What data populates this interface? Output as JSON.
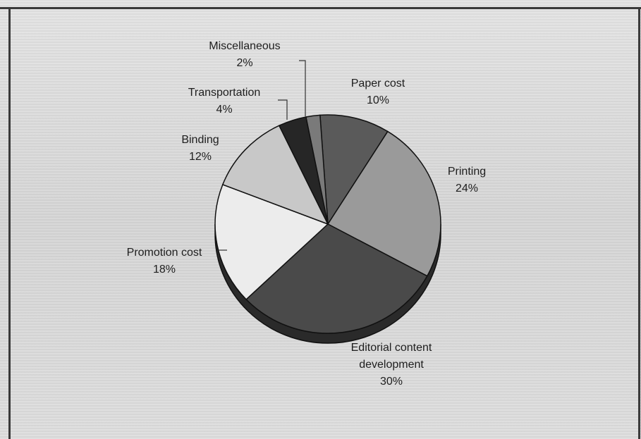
{
  "chart_data": {
    "type": "pie",
    "title": "",
    "slices": [
      {
        "label_lines": [
          "Paper cost"
        ],
        "pct_text": "10%",
        "value": 10,
        "color": "#5a5a5a"
      },
      {
        "label_lines": [
          "Printing"
        ],
        "pct_text": "24%",
        "value": 24,
        "color": "#9a9a9a"
      },
      {
        "label_lines": [
          "Editorial content",
          "development"
        ],
        "pct_text": "30%",
        "value": 30,
        "color": "#4a4a4a"
      },
      {
        "label_lines": [
          "Promotion cost"
        ],
        "pct_text": "18%",
        "value": 18,
        "color": "#ececec"
      },
      {
        "label_lines": [
          "Binding"
        ],
        "pct_text": "12%",
        "value": 12,
        "color": "#c8c8c8"
      },
      {
        "label_lines": [
          "Transportation"
        ],
        "pct_text": "4%",
        "value": 4,
        "color": "#262626"
      },
      {
        "label_lines": [
          "Miscellaneous"
        ],
        "pct_text": "2%",
        "value": 2,
        "color": "#7a7a7a"
      }
    ]
  }
}
